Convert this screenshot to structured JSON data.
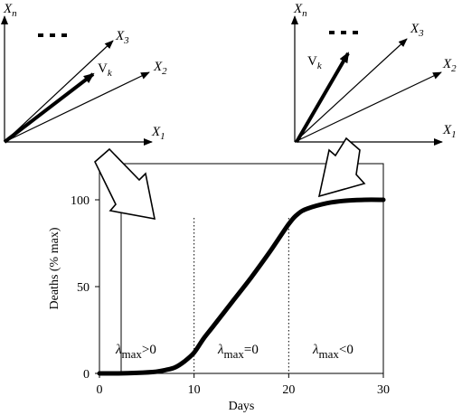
{
  "left_panel": {
    "vector_labels": {
      "axis_n_base": "X",
      "axis_n_sub": "n",
      "x3_base": "X",
      "x3_sub": "3",
      "x2_base": "X",
      "x2_sub": "2",
      "x1_base": "X",
      "x1_sub": "1",
      "vk_base": "V",
      "vk_sub": "k"
    },
    "ellipsis": "..."
  },
  "right_panel": {
    "vector_labels": {
      "axis_n_base": "X",
      "axis_n_sub": "n",
      "x3_base": "X",
      "x3_sub": "3",
      "x2_base": "X",
      "x2_sub": "2",
      "x1_base": "X",
      "x1_sub": "1",
      "vk_base": "V",
      "vk_sub": "k"
    },
    "ellipsis": "..."
  },
  "chart_data": {
    "type": "line",
    "xlabel": "Days",
    "ylabel": "Deaths (% max)",
    "xlim": [
      0,
      30
    ],
    "ylim": [
      0,
      100
    ],
    "x_ticks": [
      0,
      10,
      20,
      30
    ],
    "y_ticks": [
      0,
      50,
      100
    ],
    "x_tick_labels": [
      "0",
      "10",
      "20",
      "30"
    ],
    "y_tick_labels": [
      "0",
      "50",
      "100"
    ],
    "phase_boundaries": [
      10,
      20
    ],
    "phase_labels": [
      {
        "symbol": "λ",
        "sub": "max",
        "suffix": ">0"
      },
      {
        "symbol": "λ",
        "sub": "max",
        "suffix": "=0"
      },
      {
        "symbol": "λ",
        "sub": "max",
        "suffix": "<0"
      }
    ],
    "series": [
      {
        "x": [
          0,
          2,
          4,
          6,
          7,
          8,
          9,
          10,
          11,
          12,
          14,
          16,
          18,
          20,
          21,
          22,
          24,
          26,
          28,
          30
        ],
        "y": [
          0,
          0,
          0.3,
          1,
          2,
          3.5,
          7,
          12,
          20,
          27,
          41,
          55,
          70,
          86,
          92,
          95,
          98,
          99.5,
          100,
          100
        ]
      }
    ],
    "grid": false,
    "legend": "none"
  }
}
